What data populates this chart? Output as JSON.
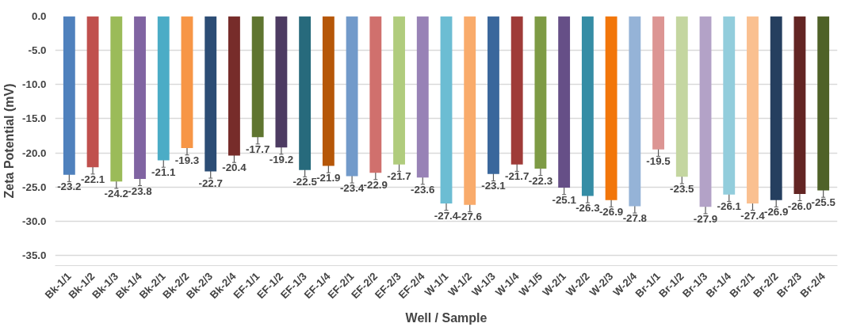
{
  "chart_data": {
    "type": "bar",
    "xlabel": "Well / Sample",
    "ylabel": "Zeta Potential (mV)",
    "categories": [
      "Bk-1/1",
      "Bk-1/2",
      "Bk-1/3",
      "Bk-1/4",
      "Bk-2/1",
      "Bk-2/2",
      "Bk-2/3",
      "Bk-2/4",
      "EF-1/1",
      "EF-1/2",
      "EF-1/3",
      "EF-1/4",
      "EF-2/1",
      "EF-2/2",
      "EF-2/3",
      "EF-2/4",
      "W-1/1",
      "W-1/2",
      "W-1/3",
      "W-1/4",
      "W-1/5",
      "W-2/1",
      "W-2/2",
      "W-2/3",
      "W-2/4",
      "Br-1/1",
      "Br-1/2",
      "Br-1/3",
      "Br-1/4",
      "Br-2/1",
      "Br-2/2",
      "Br-2/3",
      "Br-2/4"
    ],
    "values": [
      -23.2,
      -22.1,
      -24.2,
      -23.8,
      -21.1,
      -19.3,
      -22.7,
      -20.4,
      -17.7,
      -19.2,
      -22.5,
      -21.9,
      -23.4,
      -22.9,
      -21.7,
      -23.6,
      -27.4,
      -27.6,
      -23.1,
      -21.7,
      -22.3,
      -25.1,
      -26.3,
      -26.9,
      -27.8,
      -19.5,
      -23.5,
      -27.9,
      -26.1,
      -27.4,
      -26.9,
      -26.0,
      -25.5
    ],
    "errors": [
      1.0,
      1.0,
      1.0,
      1.0,
      1.0,
      1.0,
      1.0,
      1.0,
      1.0,
      1.0,
      1.0,
      1.0,
      1.0,
      1.0,
      1.0,
      1.0,
      1.0,
      1.0,
      1.0,
      1.0,
      1.0,
      1.0,
      1.0,
      1.0,
      1.0,
      1.0,
      1.0,
      1.0,
      1.0,
      1.0,
      1.0,
      1.0,
      1.0
    ],
    "colors": [
      "#4f81bd",
      "#c0504d",
      "#9bbb59",
      "#8064a2",
      "#4bacc6",
      "#f79646",
      "#2c4d75",
      "#772c2a",
      "#5f7530",
      "#4d3b62",
      "#276a7c",
      "#b65708",
      "#729aca",
      "#d0706d",
      "#b0cc7d",
      "#9882b6",
      "#6cbdd3",
      "#f9ab6b",
      "#3a679c",
      "#9f3b38",
      "#7e9b45",
      "#664f87",
      "#358da5",
      "#f2760a",
      "#95b3d7",
      "#dc9593",
      "#c4d6a0",
      "#b3a2c7",
      "#92cddc",
      "#fac090",
      "#253f5f",
      "#632523",
      "#4f6228"
    ],
    "ylim": [
      -36.5,
      0
    ],
    "yticks": [
      {
        "value": 0,
        "label": "0.0"
      },
      {
        "value": -5,
        "label": "-5.0"
      },
      {
        "value": -10,
        "label": "-10.0"
      },
      {
        "value": -15,
        "label": "-15.0"
      },
      {
        "value": -20,
        "label": "-20.0"
      },
      {
        "value": -25,
        "label": "-25.0"
      },
      {
        "value": -30,
        "label": "-30.0"
      },
      {
        "value": -35,
        "label": "-35.0"
      }
    ],
    "value_labels": [
      "-23.2",
      "-22.1",
      "-24.2",
      "-23.8",
      "-21.1",
      "-19.3",
      "-22.7",
      "-20.4",
      "-17.7",
      "-19.2",
      "-22.5",
      "-21.9",
      "-23.4",
      "-22.9",
      "-21.7",
      "-23.6",
      "-27.4",
      "-27.6",
      "-23.1",
      "-21.7",
      "-22.3",
      "-25.1",
      "-26.3",
      "-26.9",
      "-27.8",
      "-19.5",
      "-23.5",
      "-27.9",
      "-26.1",
      "-27.4",
      "-26.9",
      "-26.0",
      "-25.5"
    ],
    "grid": "y"
  }
}
